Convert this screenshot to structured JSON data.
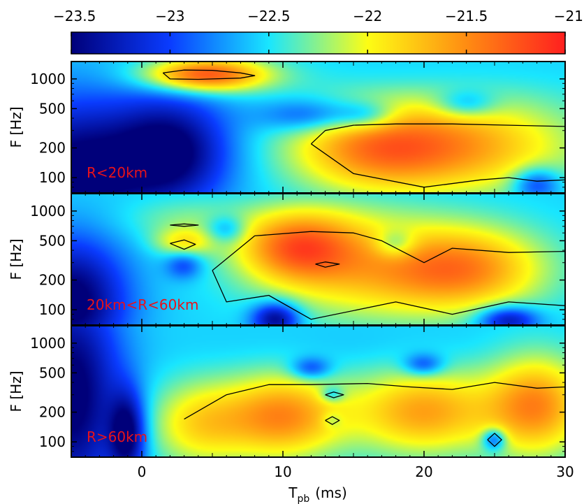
{
  "chart_data": {
    "type": "heatmap",
    "colorbar": {
      "range": [
        -23.5,
        -21
      ],
      "tick_values": [
        -23.5,
        -23,
        -22.5,
        -22,
        -21.5,
        -21
      ],
      "tick_labels": [
        "−23.5",
        "−23",
        "−22.5",
        "−22",
        "−21.5",
        "−21"
      ],
      "colormap": [
        "#00007a",
        "#0a3cff",
        "#19e6ff",
        "#fdfd14",
        "#ff8c12",
        "#ff1f1f"
      ]
    },
    "xaxis": {
      "label_main": "T",
      "label_sub": "pb",
      "label_unit": "(ms)",
      "range": [
        -5,
        30
      ],
      "tick_values": [
        0,
        10,
        20,
        30
      ],
      "tick_labels": [
        "0",
        "10",
        "20",
        "30"
      ]
    },
    "yaxis": {
      "label": "F [Hz]",
      "scale": "log",
      "range": [
        70,
        1500
      ],
      "tick_values": [
        100,
        200,
        500,
        1000
      ],
      "tick_labels": [
        "100",
        "200",
        "500",
        "1000"
      ]
    },
    "panels": [
      {
        "label": "R<20km",
        "blobs": [
          {
            "t": -5,
            "f": 100,
            "v": -23.6,
            "st": 3.5,
            "sf": 0.55
          },
          {
            "t": 2,
            "f": 180,
            "v": -23.6,
            "st": 3.0,
            "sf": 0.4
          },
          {
            "t": 4.5,
            "f": 1100,
            "v": -21.2,
            "st": 3.0,
            "sf": 0.12
          },
          {
            "t": 10,
            "f": 1050,
            "v": -22.5,
            "st": 4.0,
            "sf": 0.15
          },
          {
            "t": 20,
            "f": 1100,
            "v": -22.6,
            "st": 6.0,
            "sf": 0.12
          },
          {
            "t": 12,
            "f": 420,
            "v": -23.1,
            "st": 2.5,
            "sf": 0.12
          },
          {
            "t": 16,
            "f": 420,
            "v": -23.0,
            "st": 1.5,
            "sf": 0.1
          },
          {
            "t": 23,
            "f": 550,
            "v": -23.0,
            "st": 1.5,
            "sf": 0.1
          },
          {
            "t": 22,
            "f": 210,
            "v": -21.6,
            "st": 6.0,
            "sf": 0.35
          },
          {
            "t": 16,
            "f": 190,
            "v": -21.9,
            "st": 4.0,
            "sf": 0.3
          },
          {
            "t": 28,
            "f": 85,
            "v": -23.2,
            "st": 1.2,
            "sf": 0.12
          }
        ],
        "contours": [
          {
            "level": -21.7,
            "t": [
              1.5,
              3,
              5,
              7,
              8,
              7,
              4,
              2,
              1.5
            ],
            "f": [
              1150,
              1230,
              1220,
              1150,
              1080,
              1020,
              990,
              1000,
              1150
            ]
          },
          {
            "level": -22.0,
            "t": [
              12,
              13,
              15,
              18,
              22,
              26,
              30,
              30,
              28,
              26,
              24,
              20,
              15,
              12
            ],
            "f": [
              220,
              300,
              340,
              350,
              350,
              340,
              330,
              95,
              92,
              100,
              95,
              80,
              110,
              220
            ]
          }
        ]
      },
      {
        "label": "20km<R<60km",
        "blobs": [
          {
            "t": -5,
            "f": 120,
            "v": -23.6,
            "st": 2.8,
            "sf": 0.45
          },
          {
            "t": 9.5,
            "f": 80,
            "v": -23.5,
            "st": 1.2,
            "sf": 0.12
          },
          {
            "t": 26,
            "f": 78,
            "v": -23.4,
            "st": 1.5,
            "sf": 0.1
          },
          {
            "t": 11,
            "f": 430,
            "v": -21.5,
            "st": 3.0,
            "sf": 0.25
          },
          {
            "t": 23,
            "f": 260,
            "v": -21.6,
            "st": 4.0,
            "sf": 0.3
          },
          {
            "t": 16,
            "f": 240,
            "v": -21.9,
            "st": 5.0,
            "sf": 0.35
          },
          {
            "t": 3,
            "f": 480,
            "v": -22.0,
            "st": 1.5,
            "sf": 0.1
          },
          {
            "t": 3,
            "f": 800,
            "v": -22.3,
            "st": 3.0,
            "sf": 0.15
          },
          {
            "t": 14,
            "f": 850,
            "v": -22.4,
            "st": 5.0,
            "sf": 0.2
          },
          {
            "t": 6,
            "f": 650,
            "v": -23.0,
            "st": 1.0,
            "sf": 0.1
          },
          {
            "t": 18,
            "f": 460,
            "v": -23.0,
            "st": 1.0,
            "sf": 0.1
          },
          {
            "t": 3,
            "f": 280,
            "v": -23.0,
            "st": 0.9,
            "sf": 0.1
          }
        ],
        "contours": [
          {
            "level": -22.0,
            "t": [
              2,
              3,
              3.8,
              3,
              2
            ],
            "f": [
              470,
              510,
              460,
              410,
              470
            ]
          },
          {
            "level": -22.0,
            "t": [
              2,
              3,
              4,
              3,
              2
            ],
            "f": [
              720,
              740,
              720,
              700,
              720
            ]
          },
          {
            "level": -22.0,
            "t": [
              12.3,
              13,
              14,
              13,
              12.3
            ],
            "f": [
              290,
              305,
              290,
              270,
              290
            ]
          },
          {
            "level": -22.0,
            "t": [
              5,
              8,
              12,
              15,
              17,
              20,
              22,
              26,
              30,
              30,
              26,
              22,
              18,
              12,
              9,
              6,
              5
            ],
            "f": [
              250,
              560,
              620,
              600,
              500,
              300,
              420,
              380,
              390,
              110,
              120,
              90,
              120,
              80,
              140,
              120,
              250
            ]
          }
        ]
      },
      {
        "label": "R>60km",
        "blobs": [
          {
            "t": -5,
            "f": 300,
            "v": -23.6,
            "st": 2.5,
            "sf": 0.8
          },
          {
            "t": -1,
            "f": 120,
            "v": -23.5,
            "st": 0.9,
            "sf": 0.3
          },
          {
            "t": 10,
            "f": 180,
            "v": -21.5,
            "st": 3.0,
            "sf": 0.3
          },
          {
            "t": 20,
            "f": 200,
            "v": -21.6,
            "st": 3.5,
            "sf": 0.3
          },
          {
            "t": 28,
            "f": 230,
            "v": -21.5,
            "st": 2.5,
            "sf": 0.35
          },
          {
            "t": 4,
            "f": 150,
            "v": -21.9,
            "st": 2.5,
            "sf": 0.3
          },
          {
            "t": 15,
            "f": 850,
            "v": -22.6,
            "st": 8.0,
            "sf": 0.18
          },
          {
            "t": 13.5,
            "f": 300,
            "v": -23.0,
            "st": 0.6,
            "sf": 0.06
          },
          {
            "t": 13.5,
            "f": 165,
            "v": -22.8,
            "st": 0.5,
            "sf": 0.06
          },
          {
            "t": 25,
            "f": 105,
            "v": -23.3,
            "st": 0.6,
            "sf": 0.08
          },
          {
            "t": 12,
            "f": 550,
            "v": -23.1,
            "st": 1.0,
            "sf": 0.08
          },
          {
            "t": 20,
            "f": 600,
            "v": -23.1,
            "st": 1.0,
            "sf": 0.08
          }
        ],
        "contours": [
          {
            "level": -22.0,
            "t": [
              13,
              13.6,
              14.3,
              13.6,
              13
            ],
            "f": [
              300,
              320,
              300,
              280,
              300
            ]
          },
          {
            "level": -22.0,
            "t": [
              13,
              13.5,
              14,
              13.5,
              13
            ],
            "f": [
              165,
              180,
              165,
              150,
              165
            ]
          },
          {
            "level": -22.0,
            "t": [
              24.5,
              25,
              25.5,
              25,
              24.5
            ],
            "f": [
              105,
              122,
              105,
              90,
              105
            ]
          },
          {
            "level": -22.0,
            "t": [
              3,
              6,
              9,
              12,
              16,
              19,
              22,
              25,
              28,
              30,
              30,
              3
            ],
            "f": [
              170,
              300,
              380,
              380,
              390,
              360,
              340,
              400,
              350,
              360,
              70,
              70
            ]
          }
        ]
      }
    ]
  }
}
